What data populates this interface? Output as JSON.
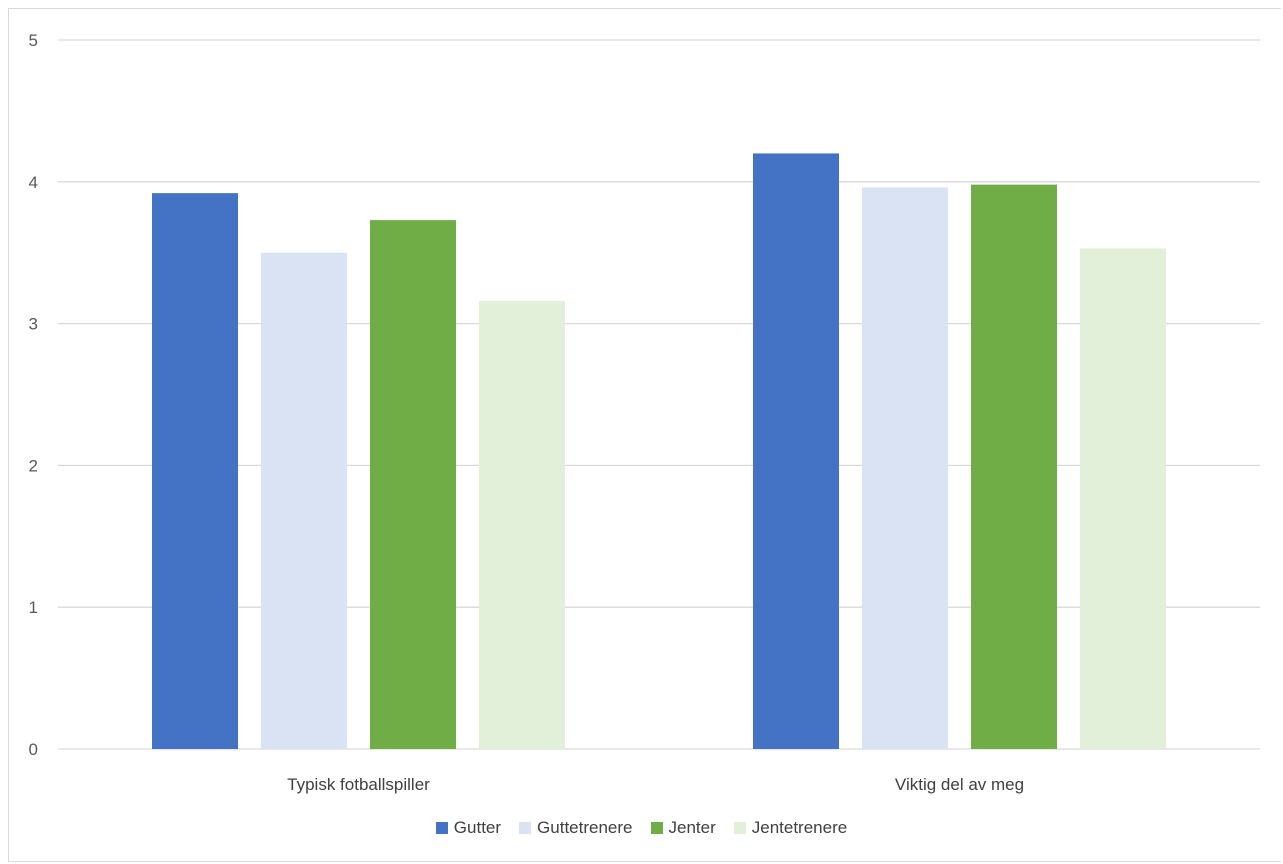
{
  "chart_data": {
    "type": "bar",
    "title": "",
    "xlabel": "",
    "ylabel": "",
    "ylim": [
      0,
      5
    ],
    "yticks": [
      0,
      1,
      2,
      3,
      4,
      5
    ],
    "grid": true,
    "legend_position": "bottom",
    "categories": [
      "Typisk fotballspiller",
      "Viktig del av meg"
    ],
    "series": [
      {
        "name": "Gutter",
        "color": "#4472C4",
        "values": [
          3.92,
          4.2
        ]
      },
      {
        "name": "Guttetrenere",
        "color": "#DAE3F3",
        "values": [
          3.5,
          3.96
        ]
      },
      {
        "name": "Jenter",
        "color": "#70AD47",
        "values": [
          3.73,
          3.98
        ]
      },
      {
        "name": "Jentetrenere",
        "color": "#E2F0D9",
        "values": [
          3.16,
          3.53
        ]
      }
    ]
  }
}
